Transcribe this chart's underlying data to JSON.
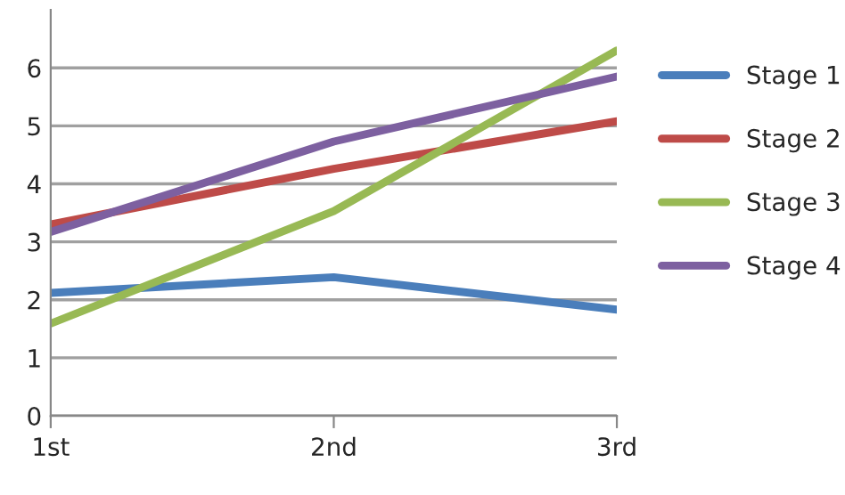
{
  "chart_data": {
    "type": "line",
    "categories": [
      "1st",
      "2nd",
      "3rd"
    ],
    "series": [
      {
        "name": "Stage 1",
        "color": "#4a7ebb",
        "values": [
          2.12,
          2.39,
          1.83
        ]
      },
      {
        "name": "Stage 2",
        "color": "#be4b48",
        "values": [
          3.3,
          4.26,
          5.08
        ]
      },
      {
        "name": "Stage 3",
        "color": "#98b954",
        "values": [
          1.59,
          3.53,
          6.3
        ]
      },
      {
        "name": "Stage 4",
        "color": "#7d60a0",
        "values": [
          3.17,
          4.73,
          5.85
        ]
      }
    ],
    "ylim": [
      0,
      7
    ],
    "yticks": [
      0,
      1,
      2,
      3,
      4,
      5,
      6
    ],
    "grid": "y",
    "legend": "right",
    "marker": "none",
    "line_style": "solid"
  }
}
